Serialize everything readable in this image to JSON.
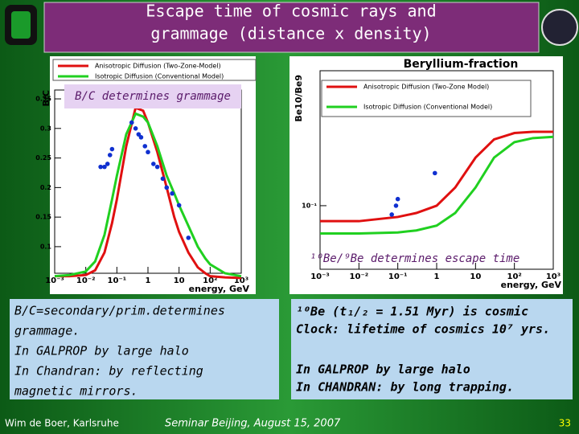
{
  "slide": {
    "title": [
      "Escape time of cosmic rays and",
      "grammage (distance x density)"
    ],
    "left_box": [
      "B/C=secondary/prim.determines",
      "grammage.",
      "In GALPROP by large halo",
      "In Chandran: by reflecting",
      "magnetic mirrors."
    ],
    "right_box": [
      "¹⁰Be (t₁/₂ = 1.51 Myr) is cosmic",
      "Clock: lifetime of cosmics 10⁷ yrs.",
      "In GALPROP by large halo",
      "In CHANDRAN: by long trapping."
    ],
    "footer": {
      "author": "Wim de Boer, Karlsruhe",
      "event": "Seminar Beijing, August 15, 2007",
      "page": "33"
    }
  },
  "chart_data": [
    {
      "type": "line",
      "ylabel": "B/C",
      "xlabel": "energy, GeV",
      "annotation": "B/C determines grammage",
      "xscale": "log",
      "xlim": [
        0.001,
        1000
      ],
      "xticks": [
        {
          "value": 0.001,
          "label": "10⁻³"
        },
        {
          "value": 0.01,
          "label": "10⁻²"
        },
        {
          "value": 0.1,
          "label": "10⁻¹"
        },
        1,
        10,
        {
          "value": 100,
          "label": "10²"
        },
        {
          "value": 1000,
          "label": "10³"
        }
      ],
      "ylim": [
        0.055,
        0.365
      ],
      "yticks": [
        0.1,
        0.15,
        0.2,
        0.25,
        0.3,
        0.35
      ],
      "series": [
        {
          "name": "Anisotropic Diffusion (Two-Zone-Model)",
          "color": "#e01010",
          "x": [
            0.001,
            0.003,
            0.01,
            0.02,
            0.04,
            0.07,
            0.1,
            0.2,
            0.4,
            0.7,
            1,
            2,
            4,
            7,
            10,
            20,
            40,
            70,
            100,
            300,
            1000
          ],
          "values": [
            0.05,
            0.05,
            0.052,
            0.06,
            0.09,
            0.14,
            0.18,
            0.27,
            0.335,
            0.33,
            0.31,
            0.26,
            0.2,
            0.15,
            0.125,
            0.09,
            0.065,
            0.055,
            0.05,
            0.048,
            0.047
          ]
        },
        {
          "name": "Isotropic Diffusion (Conventional Model)",
          "color": "#20d020",
          "x": [
            0.001,
            0.003,
            0.01,
            0.02,
            0.04,
            0.07,
            0.1,
            0.2,
            0.4,
            0.7,
            1,
            2,
            4,
            7,
            10,
            20,
            40,
            70,
            100,
            300,
            1000
          ],
          "values": [
            0.05,
            0.052,
            0.058,
            0.075,
            0.12,
            0.18,
            0.22,
            0.29,
            0.325,
            0.32,
            0.31,
            0.27,
            0.22,
            0.19,
            0.17,
            0.135,
            0.1,
            0.08,
            0.07,
            0.055,
            0.05
          ]
        },
        {
          "color": "#1030d0",
          "style": "points",
          "x": [
            0.03,
            0.04,
            0.05,
            0.06,
            0.07,
            0.3,
            0.4,
            0.5,
            0.6,
            0.8,
            1,
            1.5,
            2,
            3,
            4,
            6,
            10,
            20
          ],
          "values": [
            0.235,
            0.235,
            0.24,
            0.255,
            0.265,
            0.31,
            0.3,
            0.29,
            0.285,
            0.27,
            0.26,
            0.24,
            0.235,
            0.215,
            0.2,
            0.19,
            0.17,
            0.115
          ]
        }
      ]
    },
    {
      "type": "line",
      "title": "Beryllium-fraction",
      "ylabel": "Be10/Be9",
      "xlabel": "energy, GeV",
      "annotation": "¹⁰Be/⁹Be determines escape time",
      "xscale": "log",
      "xlim": [
        0.001,
        1000
      ],
      "xticks": [
        {
          "value": 0.001,
          "label": "10⁻³"
        },
        {
          "value": 0.01,
          "label": "10⁻²"
        },
        {
          "value": 0.1,
          "label": "10⁻¹"
        },
        1,
        10,
        {
          "value": 100,
          "label": "10²"
        },
        {
          "value": 1000,
          "label": "10³"
        }
      ],
      "yscale": "log",
      "ylim": [
        0.04,
        0.7
      ],
      "yticks": [
        {
          "value": 0.1,
          "label": "10⁻¹"
        }
      ],
      "series": [
        {
          "name": "Anisotropic Diffusion (Two-Zone Model)",
          "color": "#e01010",
          "x": [
            0.001,
            0.01,
            0.1,
            0.3,
            1,
            3,
            10,
            30,
            100,
            300,
            1000
          ],
          "values": [
            0.08,
            0.08,
            0.085,
            0.09,
            0.1,
            0.13,
            0.2,
            0.26,
            0.285,
            0.29,
            0.29
          ]
        },
        {
          "name": "Isotropic Diffusion (Conventional Model)",
          "color": "#20d020",
          "x": [
            0.001,
            0.01,
            0.1,
            0.3,
            1,
            3,
            10,
            30,
            100,
            300,
            1000
          ],
          "values": [
            0.067,
            0.067,
            0.068,
            0.07,
            0.075,
            0.09,
            0.13,
            0.2,
            0.25,
            0.265,
            0.27
          ]
        },
        {
          "color": "#1030d0",
          "style": "points",
          "x": [
            0.07,
            0.09,
            0.1,
            0.9
          ],
          "values": [
            0.088,
            0.1,
            0.11,
            0.16
          ]
        }
      ]
    }
  ]
}
